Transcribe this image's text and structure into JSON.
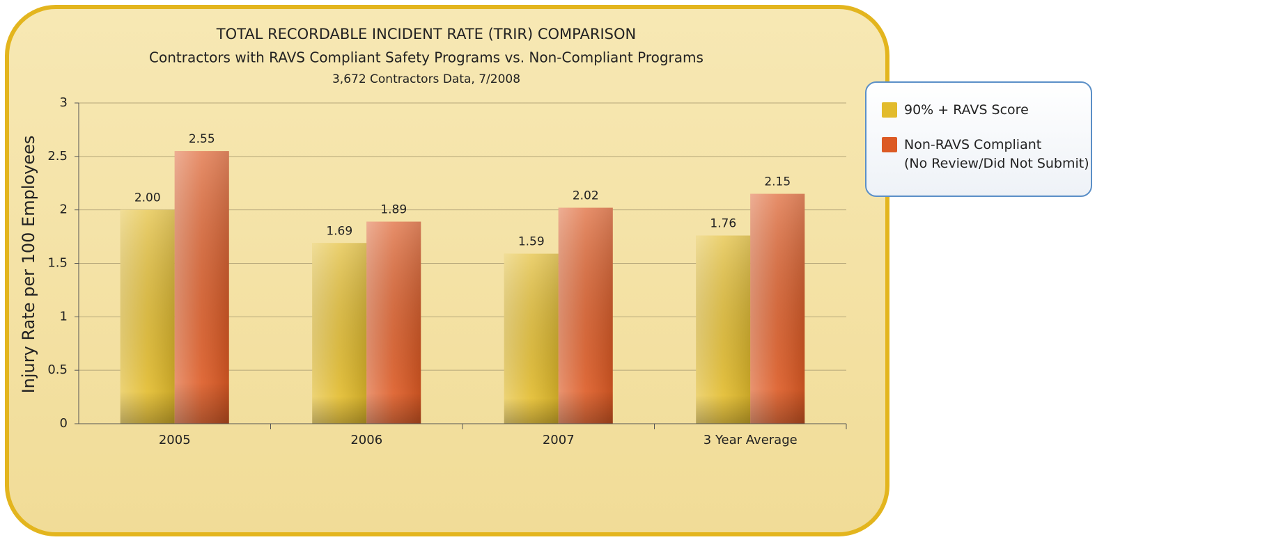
{
  "chart_data": {
    "type": "bar",
    "title": "TOTAL RECORDABLE INCIDENT RATE (TRIR) COMPARISON",
    "subtitle": "Contractors with RAVS Compliant Safety Programs vs. Non-Compliant Programs",
    "note": "3,672 Contractors Data, 7/2008",
    "y_label": "Injury Rate per 100 Employees",
    "categories": [
      "2005",
      "2006",
      "2007",
      "3 Year Average"
    ],
    "series": [
      {
        "name": "90% + RAVS Score",
        "color": "#e2bb2c",
        "values": [
          2.0,
          1.69,
          1.59,
          1.76
        ],
        "value_labels": [
          "2.00",
          "1.69",
          "1.59",
          "1.76"
        ]
      },
      {
        "name": "Non-RAVS Compliant\n(No Review/Did Not Submit)",
        "color": "#dc5a24",
        "values": [
          2.55,
          1.89,
          2.02,
          2.15
        ],
        "value_labels": [
          "2.55",
          "1.89",
          "2.02",
          "2.15"
        ]
      }
    ],
    "ylim": [
      0,
      3
    ],
    "yticks": [
      0,
      0.5,
      1,
      1.5,
      2,
      2.5,
      3
    ],
    "grid": true,
    "legend": "right"
  }
}
